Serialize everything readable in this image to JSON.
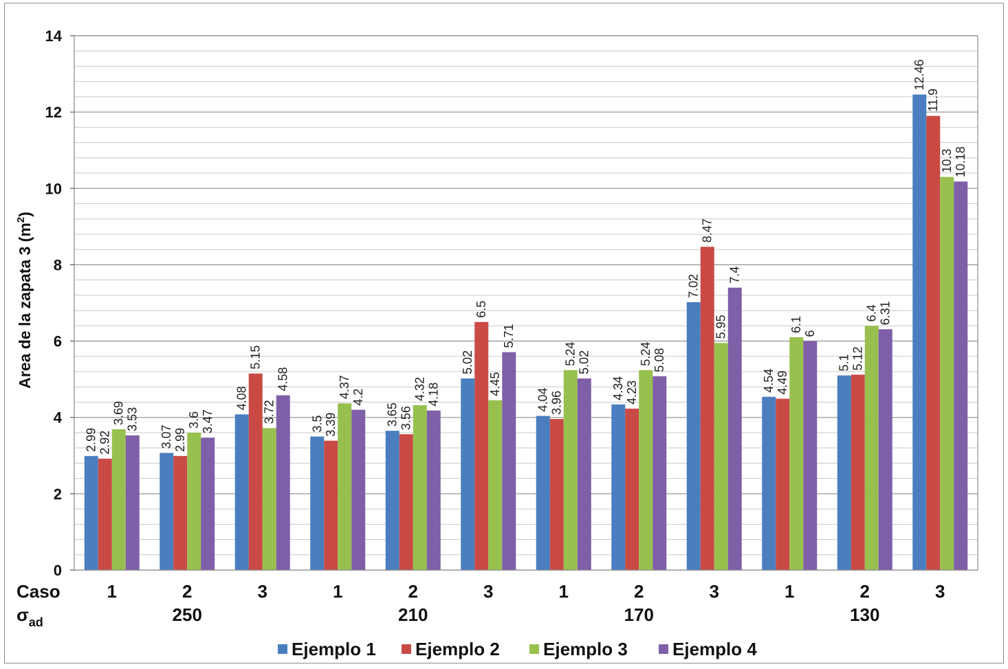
{
  "chart_data": {
    "type": "bar",
    "title": "",
    "ylabel": "Area de la zapata 3 (m²)",
    "ylabel_main": "Area de la zapata 3 (m",
    "ylabel_sup": "2",
    "ylabel_end": ")",
    "ylim": [
      0,
      14
    ],
    "yticks": [
      0,
      2,
      4,
      6,
      8,
      10,
      12,
      14
    ],
    "grid": true,
    "row_label_caso": "Caso",
    "row_label_sigma": "σ",
    "row_label_sigma_sub": "ad",
    "categories": [
      "1",
      "2",
      "3",
      "1",
      "2",
      "3",
      "1",
      "2",
      "3",
      "1",
      "2",
      "3"
    ],
    "groups": [
      "250",
      "210",
      "170",
      "130"
    ],
    "series": [
      {
        "name": "Ejemplo 1",
        "color": "#4a7ebf",
        "values": [
          2.99,
          3.07,
          4.08,
          3.5,
          3.65,
          5.02,
          4.04,
          4.34,
          7.02,
          4.54,
          5.1,
          12.46
        ]
      },
      {
        "name": "Ejemplo 2",
        "color": "#c94a45",
        "values": [
          2.92,
          2.99,
          5.15,
          3.39,
          3.56,
          6.5,
          3.96,
          4.23,
          8.47,
          4.49,
          5.12,
          11.9
        ]
      },
      {
        "name": "Ejemplo 3",
        "color": "#98c04f",
        "values": [
          3.69,
          3.6,
          3.72,
          4.37,
          4.32,
          4.45,
          5.24,
          5.24,
          5.95,
          6.1,
          6.4,
          10.3
        ]
      },
      {
        "name": "Ejemplo 4",
        "color": "#7f5fa8",
        "values": [
          3.53,
          3.47,
          4.58,
          4.2,
          4.18,
          5.71,
          5.02,
          5.08,
          7.4,
          6,
          6.31,
          10.18
        ]
      }
    ],
    "legend_position": "bottom"
  }
}
